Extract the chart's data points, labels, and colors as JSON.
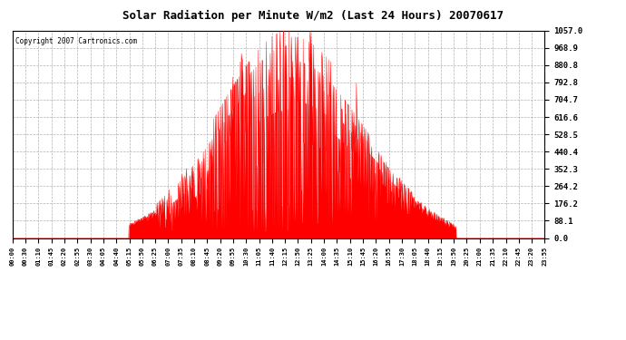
{
  "title": "Solar Radiation per Minute W/m2 (Last 24 Hours) 20070617",
  "copyright_text": "Copyright 2007 Cartronics.com",
  "bar_color": "#FF0000",
  "background_color": "#FFFFFF",
  "grid_color": "#AAAAAA",
  "yticks": [
    0.0,
    88.1,
    176.2,
    264.2,
    352.3,
    440.4,
    528.5,
    616.6,
    704.7,
    792.8,
    880.8,
    968.9,
    1057.0
  ],
  "ymax": 1057.0,
  "xtick_labels": [
    "00:00",
    "00:30",
    "01:10",
    "01:45",
    "02:20",
    "02:55",
    "03:30",
    "04:05",
    "04:40",
    "05:15",
    "05:50",
    "06:25",
    "07:00",
    "07:35",
    "08:10",
    "08:45",
    "09:20",
    "09:55",
    "10:30",
    "11:05",
    "11:40",
    "12:15",
    "12:50",
    "13:25",
    "14:00",
    "14:35",
    "15:10",
    "15:45",
    "16:20",
    "16:55",
    "17:30",
    "18:05",
    "18:40",
    "19:15",
    "19:50",
    "20:25",
    "21:00",
    "21:35",
    "22:10",
    "22:45",
    "23:20",
    "23:55"
  ]
}
